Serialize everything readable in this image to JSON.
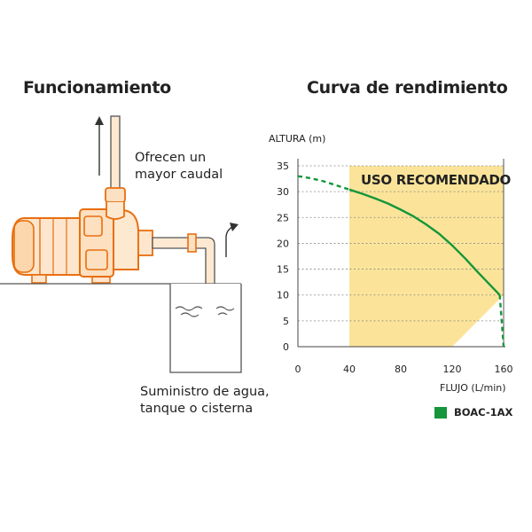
{
  "titles": {
    "left": "Funcionamiento",
    "right": "Curva de rendimiento"
  },
  "left_diagram": {
    "outlet_caption": [
      "Ofrecen un",
      "mayor caudal"
    ],
    "supply_caption": [
      "Suministro de agua,",
      "tanque o cisterna"
    ],
    "colors": {
      "pump_orange": "#ee7d1c",
      "outline": "#444444"
    }
  },
  "chart_data": {
    "type": "line",
    "ylabel": "ALTURA (m)",
    "xlabel": "FLUJO (L/min)",
    "xlim": [
      0,
      160
    ],
    "ylim": [
      0,
      35
    ],
    "x_ticks": [
      0,
      40,
      80,
      120,
      160
    ],
    "y_ticks": [
      0,
      5,
      10,
      15,
      20,
      25,
      30,
      35
    ],
    "grid": "horizontal-dashed",
    "recommended_zone": {
      "label": "USO RECOMENDADO",
      "polygon": [
        [
          40,
          35
        ],
        [
          160,
          35
        ],
        [
          160,
          10
        ],
        [
          120,
          0
        ],
        [
          40,
          0
        ]
      ],
      "color": "#fbe499"
    },
    "series": [
      {
        "name": "BOAC-1AX",
        "color": "#15963a",
        "x": [
          0,
          10,
          20,
          30,
          40,
          50,
          60,
          70,
          80,
          90,
          100,
          110,
          120,
          130,
          140,
          150,
          157,
          160
        ],
        "y": [
          33,
          32.6,
          32.0,
          31.2,
          30.4,
          29.6,
          28.7,
          27.7,
          26.5,
          25.2,
          23.6,
          21.8,
          19.6,
          17.1,
          14.4,
          11.8,
          10,
          0
        ],
        "solid_range": [
          40,
          157
        ]
      }
    ],
    "legend": {
      "position": "bottom-right"
    }
  }
}
